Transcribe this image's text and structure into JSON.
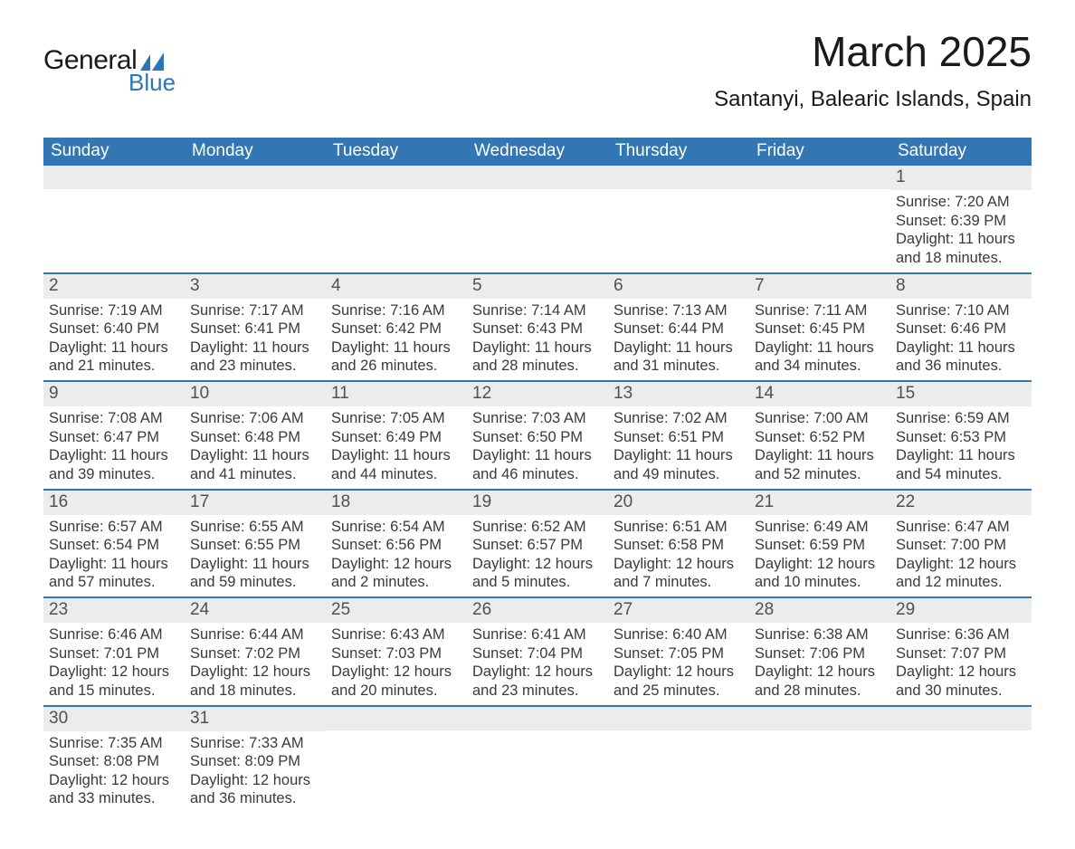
{
  "logo": {
    "text1": "General",
    "text2": "Blue",
    "mark_color": "#2a77b8"
  },
  "title": "March 2025",
  "subtitle": "Santanyi, Balearic Islands, Spain",
  "colors": {
    "header_bg": "#3277b3",
    "header_text": "#ffffff",
    "daynum_bg": "#ececec",
    "row_divider": "#3277b3",
    "body_text": "#3a3a3a"
  },
  "typography": {
    "title_fontsize": 46,
    "subtitle_fontsize": 24,
    "header_fontsize": 19,
    "daynum_fontsize": 19,
    "body_fontsize": 16.5
  },
  "layout": {
    "columns": 7,
    "rows": 6
  },
  "weekdays": [
    "Sunday",
    "Monday",
    "Tuesday",
    "Wednesday",
    "Thursday",
    "Friday",
    "Saturday"
  ],
  "weeks": [
    [
      {
        "day": "",
        "sunrise": "",
        "sunset": "",
        "daylight": ""
      },
      {
        "day": "",
        "sunrise": "",
        "sunset": "",
        "daylight": ""
      },
      {
        "day": "",
        "sunrise": "",
        "sunset": "",
        "daylight": ""
      },
      {
        "day": "",
        "sunrise": "",
        "sunset": "",
        "daylight": ""
      },
      {
        "day": "",
        "sunrise": "",
        "sunset": "",
        "daylight": ""
      },
      {
        "day": "",
        "sunrise": "",
        "sunset": "",
        "daylight": ""
      },
      {
        "day": "1",
        "sunrise": "Sunrise: 7:20 AM",
        "sunset": "Sunset: 6:39 PM",
        "daylight": "Daylight: 11 hours and 18 minutes."
      }
    ],
    [
      {
        "day": "2",
        "sunrise": "Sunrise: 7:19 AM",
        "sunset": "Sunset: 6:40 PM",
        "daylight": "Daylight: 11 hours and 21 minutes."
      },
      {
        "day": "3",
        "sunrise": "Sunrise: 7:17 AM",
        "sunset": "Sunset: 6:41 PM",
        "daylight": "Daylight: 11 hours and 23 minutes."
      },
      {
        "day": "4",
        "sunrise": "Sunrise: 7:16 AM",
        "sunset": "Sunset: 6:42 PM",
        "daylight": "Daylight: 11 hours and 26 minutes."
      },
      {
        "day": "5",
        "sunrise": "Sunrise: 7:14 AM",
        "sunset": "Sunset: 6:43 PM",
        "daylight": "Daylight: 11 hours and 28 minutes."
      },
      {
        "day": "6",
        "sunrise": "Sunrise: 7:13 AM",
        "sunset": "Sunset: 6:44 PM",
        "daylight": "Daylight: 11 hours and 31 minutes."
      },
      {
        "day": "7",
        "sunrise": "Sunrise: 7:11 AM",
        "sunset": "Sunset: 6:45 PM",
        "daylight": "Daylight: 11 hours and 34 minutes."
      },
      {
        "day": "8",
        "sunrise": "Sunrise: 7:10 AM",
        "sunset": "Sunset: 6:46 PM",
        "daylight": "Daylight: 11 hours and 36 minutes."
      }
    ],
    [
      {
        "day": "9",
        "sunrise": "Sunrise: 7:08 AM",
        "sunset": "Sunset: 6:47 PM",
        "daylight": "Daylight: 11 hours and 39 minutes."
      },
      {
        "day": "10",
        "sunrise": "Sunrise: 7:06 AM",
        "sunset": "Sunset: 6:48 PM",
        "daylight": "Daylight: 11 hours and 41 minutes."
      },
      {
        "day": "11",
        "sunrise": "Sunrise: 7:05 AM",
        "sunset": "Sunset: 6:49 PM",
        "daylight": "Daylight: 11 hours and 44 minutes."
      },
      {
        "day": "12",
        "sunrise": "Sunrise: 7:03 AM",
        "sunset": "Sunset: 6:50 PM",
        "daylight": "Daylight: 11 hours and 46 minutes."
      },
      {
        "day": "13",
        "sunrise": "Sunrise: 7:02 AM",
        "sunset": "Sunset: 6:51 PM",
        "daylight": "Daylight: 11 hours and 49 minutes."
      },
      {
        "day": "14",
        "sunrise": "Sunrise: 7:00 AM",
        "sunset": "Sunset: 6:52 PM",
        "daylight": "Daylight: 11 hours and 52 minutes."
      },
      {
        "day": "15",
        "sunrise": "Sunrise: 6:59 AM",
        "sunset": "Sunset: 6:53 PM",
        "daylight": "Daylight: 11 hours and 54 minutes."
      }
    ],
    [
      {
        "day": "16",
        "sunrise": "Sunrise: 6:57 AM",
        "sunset": "Sunset: 6:54 PM",
        "daylight": "Daylight: 11 hours and 57 minutes."
      },
      {
        "day": "17",
        "sunrise": "Sunrise: 6:55 AM",
        "sunset": "Sunset: 6:55 PM",
        "daylight": "Daylight: 11 hours and 59 minutes."
      },
      {
        "day": "18",
        "sunrise": "Sunrise: 6:54 AM",
        "sunset": "Sunset: 6:56 PM",
        "daylight": "Daylight: 12 hours and 2 minutes."
      },
      {
        "day": "19",
        "sunrise": "Sunrise: 6:52 AM",
        "sunset": "Sunset: 6:57 PM",
        "daylight": "Daylight: 12 hours and 5 minutes."
      },
      {
        "day": "20",
        "sunrise": "Sunrise: 6:51 AM",
        "sunset": "Sunset: 6:58 PM",
        "daylight": "Daylight: 12 hours and 7 minutes."
      },
      {
        "day": "21",
        "sunrise": "Sunrise: 6:49 AM",
        "sunset": "Sunset: 6:59 PM",
        "daylight": "Daylight: 12 hours and 10 minutes."
      },
      {
        "day": "22",
        "sunrise": "Sunrise: 6:47 AM",
        "sunset": "Sunset: 7:00 PM",
        "daylight": "Daylight: 12 hours and 12 minutes."
      }
    ],
    [
      {
        "day": "23",
        "sunrise": "Sunrise: 6:46 AM",
        "sunset": "Sunset: 7:01 PM",
        "daylight": "Daylight: 12 hours and 15 minutes."
      },
      {
        "day": "24",
        "sunrise": "Sunrise: 6:44 AM",
        "sunset": "Sunset: 7:02 PM",
        "daylight": "Daylight: 12 hours and 18 minutes."
      },
      {
        "day": "25",
        "sunrise": "Sunrise: 6:43 AM",
        "sunset": "Sunset: 7:03 PM",
        "daylight": "Daylight: 12 hours and 20 minutes."
      },
      {
        "day": "26",
        "sunrise": "Sunrise: 6:41 AM",
        "sunset": "Sunset: 7:04 PM",
        "daylight": "Daylight: 12 hours and 23 minutes."
      },
      {
        "day": "27",
        "sunrise": "Sunrise: 6:40 AM",
        "sunset": "Sunset: 7:05 PM",
        "daylight": "Daylight: 12 hours and 25 minutes."
      },
      {
        "day": "28",
        "sunrise": "Sunrise: 6:38 AM",
        "sunset": "Sunset: 7:06 PM",
        "daylight": "Daylight: 12 hours and 28 minutes."
      },
      {
        "day": "29",
        "sunrise": "Sunrise: 6:36 AM",
        "sunset": "Sunset: 7:07 PM",
        "daylight": "Daylight: 12 hours and 30 minutes."
      }
    ],
    [
      {
        "day": "30",
        "sunrise": "Sunrise: 7:35 AM",
        "sunset": "Sunset: 8:08 PM",
        "daylight": "Daylight: 12 hours and 33 minutes."
      },
      {
        "day": "31",
        "sunrise": "Sunrise: 7:33 AM",
        "sunset": "Sunset: 8:09 PM",
        "daylight": "Daylight: 12 hours and 36 minutes."
      },
      {
        "day": "",
        "sunrise": "",
        "sunset": "",
        "daylight": ""
      },
      {
        "day": "",
        "sunrise": "",
        "sunset": "",
        "daylight": ""
      },
      {
        "day": "",
        "sunrise": "",
        "sunset": "",
        "daylight": ""
      },
      {
        "day": "",
        "sunrise": "",
        "sunset": "",
        "daylight": ""
      },
      {
        "day": "",
        "sunrise": "",
        "sunset": "",
        "daylight": ""
      }
    ]
  ]
}
